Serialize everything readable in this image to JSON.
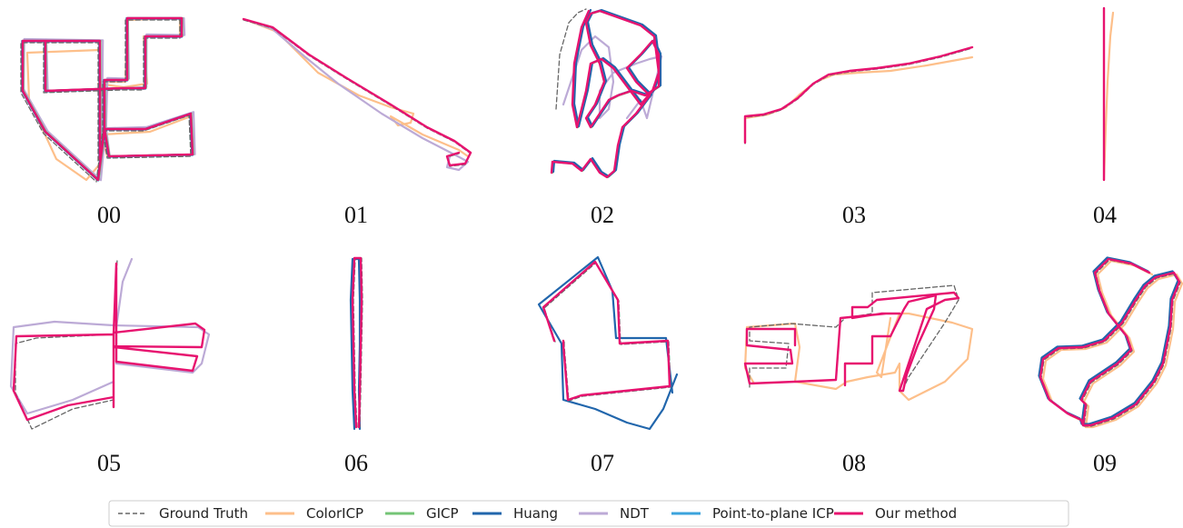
{
  "chart_data": {
    "type": "line",
    "panel_labels": [
      "00",
      "01",
      "02",
      "03",
      "04",
      "05",
      "06",
      "07",
      "08",
      "09"
    ],
    "series": [
      {
        "name": "Ground Truth",
        "color": "#666666",
        "style": "dashed"
      },
      {
        "name": "ColorICP",
        "color": "#fdbf8a",
        "style": "solid"
      },
      {
        "name": "GICP",
        "color": "#74c476",
        "style": "solid"
      },
      {
        "name": "Huang",
        "color": "#2166ac",
        "style": "solid"
      },
      {
        "name": "NDT",
        "color": "#bcaad6",
        "style": "solid"
      },
      {
        "name": "Point-to-plane ICP",
        "color": "#3ba3dc",
        "style": "solid"
      },
      {
        "name": "Our method",
        "color": "#e7136f",
        "style": "solid"
      }
    ],
    "legend_position": "bottom-center",
    "grid": false,
    "axes_visible": false
  }
}
